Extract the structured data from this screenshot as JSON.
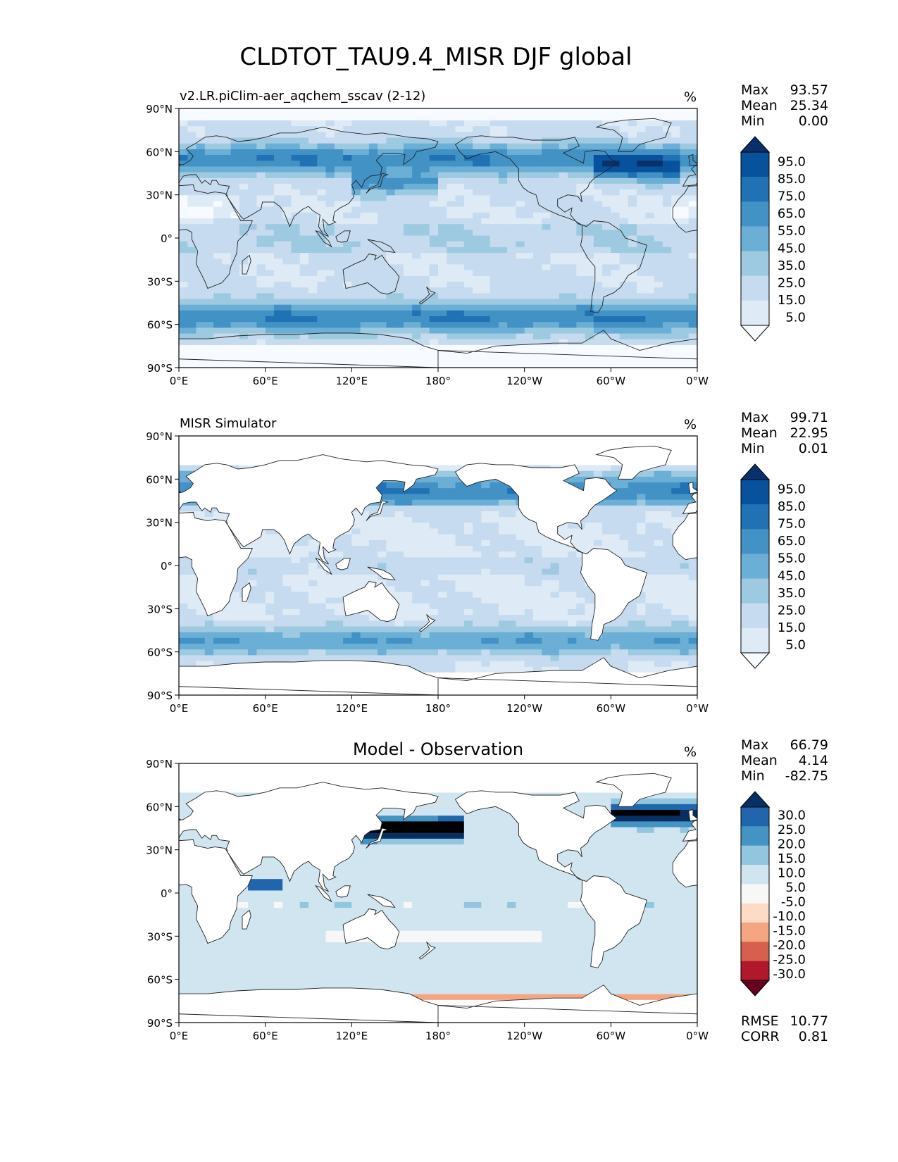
{
  "figure": {
    "title": "CLDTOT_TAU9.4_MISR DJF global"
  },
  "axes": {
    "lat_ticks": [
      "90°N",
      "60°N",
      "30°N",
      "0°",
      "30°S",
      "60°S",
      "90°S"
    ],
    "lon_ticks": [
      "0°E",
      "60°E",
      "120°E",
      "180°",
      "120°W",
      "60°W",
      "0°W"
    ]
  },
  "colors": {
    "blues": [
      "#f7fbff",
      "#deebf7",
      "#c6dbef",
      "#9ecae1",
      "#6baed6",
      "#4292c6",
      "#2171b5",
      "#08519c",
      "#08306b"
    ],
    "diverging": [
      "#67001f",
      "#b2182b",
      "#d6604d",
      "#f4a582",
      "#fddbc7",
      "#f7f7f7",
      "#d1e5f0",
      "#92c5de",
      "#4393c3",
      "#2166ac",
      "#053061"
    ],
    "coastline": "#222222"
  },
  "chart_data": [
    {
      "type": "heatmap",
      "title": "v2.LR.piClim-aer_aqchem_sscav (2-12)",
      "units": "%",
      "stats": [
        {
          "label": "Max",
          "value": "93.57"
        },
        {
          "label": "Mean",
          "value": "25.34"
        },
        {
          "label": "Min",
          "value": "0.00"
        }
      ],
      "colorbar": {
        "palette": "blues",
        "labels": [
          "95.0",
          "85.0",
          "75.0",
          "65.0",
          "55.0",
          "45.0",
          "35.0",
          "25.0",
          "15.0",
          "5.0"
        ],
        "levels": [
          0,
          5,
          15,
          25,
          35,
          45,
          55,
          65,
          75,
          85,
          95,
          100
        ],
        "extend": "both"
      },
      "xlim": [
        0,
        360
      ],
      "ylim": [
        -90,
        90
      ],
      "land_masked": false
    },
    {
      "type": "heatmap",
      "title": "MISR Simulator",
      "units": "%",
      "stats": [
        {
          "label": "Max",
          "value": "99.71"
        },
        {
          "label": "Mean",
          "value": "22.95"
        },
        {
          "label": "Min",
          "value": "0.01"
        }
      ],
      "colorbar": {
        "palette": "blues",
        "labels": [
          "95.0",
          "85.0",
          "75.0",
          "65.0",
          "55.0",
          "45.0",
          "35.0",
          "25.0",
          "15.0",
          "5.0"
        ],
        "levels": [
          0,
          5,
          15,
          25,
          35,
          45,
          55,
          65,
          75,
          85,
          95,
          100
        ],
        "extend": "both"
      },
      "xlim": [
        0,
        360
      ],
      "ylim": [
        -90,
        90
      ],
      "land_masked": true
    },
    {
      "type": "heatmap",
      "title": "Model - Observation",
      "units": "%",
      "stats": [
        {
          "label": "Max",
          "value": "66.79"
        },
        {
          "label": "Mean",
          "value": "4.14"
        },
        {
          "label": "Min",
          "value": "-82.75"
        }
      ],
      "colorbar": {
        "palette": "diverging",
        "labels": [
          "30.0",
          "25.0",
          "20.0",
          "15.0",
          "10.0",
          "5.0",
          "-5.0",
          "-10.0",
          "-15.0",
          "-20.0",
          "-25.0",
          "-30.0"
        ],
        "levels": [
          -35,
          -30,
          -25,
          -20,
          -15,
          -10,
          -5,
          5,
          10,
          15,
          20,
          25,
          30,
          35
        ],
        "extend": "both"
      },
      "metrics": [
        {
          "label": "RMSE",
          "value": "10.77"
        },
        {
          "label": "CORR",
          "value": "0.81"
        }
      ],
      "xlim": [
        0,
        360
      ],
      "ylim": [
        -90,
        90
      ],
      "land_masked": true
    }
  ]
}
